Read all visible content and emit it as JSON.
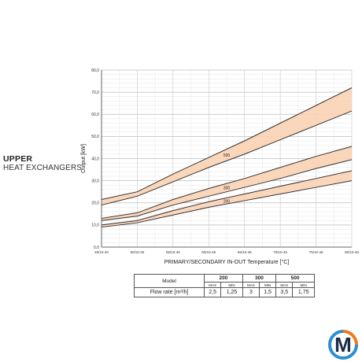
{
  "side_title": {
    "line1": "UPPER",
    "line2": "HEAT EXCHANGERS"
  },
  "chart_data": {
    "type": "area",
    "title": "",
    "xlabel": "PRIMARY/SECONDARY IN-OUT Temperature   [°C]",
    "ylabel": "Output [kW]",
    "categories": [
      "45/10-40",
      "50/10-45",
      "55/10-45",
      "60/10-45",
      "65/10-45",
      "70/10-45",
      "75/10-45",
      "80/10-45"
    ],
    "yticks": [
      "0,0",
      "10,0",
      "20,0",
      "30,0",
      "40,0",
      "50,0",
      "60,0",
      "70,0",
      "80,0"
    ],
    "ylim": [
      0,
      80
    ],
    "grid": true,
    "band_color": "#f9d2b4",
    "line_color": "#333333",
    "series": [
      {
        "name": "500",
        "label_at": 3.5,
        "upper": [
          21.5,
          25.0,
          33.0,
          40.5,
          48.0,
          56.0,
          64.0,
          72.0
        ],
        "lower": [
          19.0,
          23.0,
          29.5,
          36.0,
          42.0,
          48.5,
          55.0,
          61.5
        ]
      },
      {
        "name": "300",
        "label_at": 3.5,
        "upper": [
          13.0,
          15.5,
          21.5,
          26.5,
          31.0,
          36.0,
          41.0,
          45.5
        ],
        "lower": [
          12.0,
          14.0,
          19.0,
          23.0,
          27.0,
          31.0,
          35.5,
          39.5
        ]
      },
      {
        "name": "200",
        "label_at": 3.5,
        "upper": [
          10.0,
          12.0,
          16.5,
          20.5,
          24.0,
          27.5,
          31.0,
          34.5
        ],
        "lower": [
          9.0,
          11.0,
          14.5,
          18.0,
          21.0,
          24.0,
          27.0,
          30.0
        ]
      }
    ]
  },
  "flow_table": {
    "model_label": "Model",
    "flow_label": "Flow rate [m³/h]",
    "models": [
      {
        "name": "200",
        "max_label": "MAX",
        "min_label": "MIN",
        "max": "2,5",
        "min": "1,25"
      },
      {
        "name": "300",
        "max_label": "MAX",
        "min_label": "MIN",
        "max": "3",
        "min": "1,5"
      },
      {
        "name": "500",
        "max_label": "MAX",
        "min_label": "MIN",
        "max": "3,5",
        "min": "1,75"
      }
    ]
  },
  "logo": {
    "letter": "M",
    "color_dark": "#1c2a4a",
    "color_orange": "#f07a1e",
    "color_blue": "#2a8fd0"
  }
}
